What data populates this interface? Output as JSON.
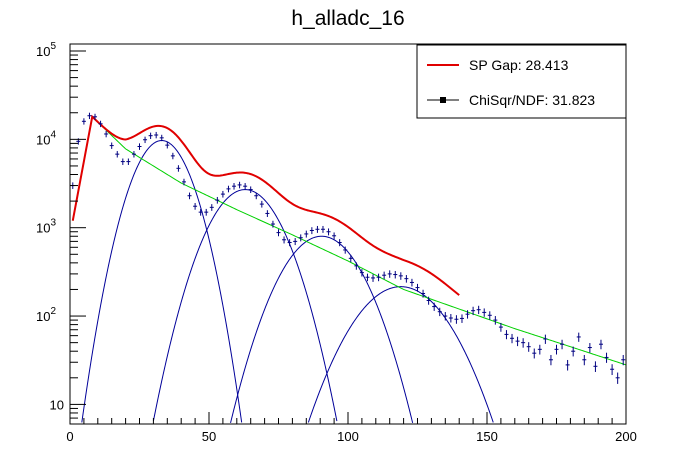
{
  "chart_data": {
    "type": "line",
    "title": "h_alladc_16",
    "xlabel": "",
    "ylabel": "",
    "xlim": [
      0,
      200
    ],
    "ylim": [
      6,
      120000
    ],
    "y_scale": "log",
    "grid": false,
    "legend_position": "top-right",
    "x_ticks": [
      "0",
      "50",
      "100",
      "150",
      "200"
    ],
    "y_ticks": [
      {
        "base": "10",
        "exp": ""
      },
      {
        "base": "10",
        "exp": "2"
      },
      {
        "base": "10",
        "exp": "3"
      },
      {
        "base": "10",
        "exp": "4"
      },
      {
        "base": "10",
        "exp": "5"
      }
    ],
    "legend": [
      {
        "label": "SP Gap: 28.413",
        "color": "#e00000",
        "marker": "line"
      },
      {
        "label": "ChiSqr/NDF: 31.823",
        "color": "#000000",
        "marker": "point"
      }
    ],
    "colors": {
      "data": "#000080",
      "fit_total": "#e00000",
      "background": "#00d000",
      "gaussians": "#000099",
      "frame": "#000000"
    },
    "series": [
      {
        "kind": "data_points",
        "x": [
          1,
          3,
          5,
          7,
          9,
          11,
          13,
          15,
          17,
          19,
          21,
          23,
          25,
          27,
          29,
          31,
          33,
          35,
          37,
          39,
          41,
          43,
          45,
          47,
          49,
          51,
          53,
          55,
          57,
          59,
          61,
          63,
          65,
          67,
          69,
          71,
          73,
          75,
          77,
          79,
          81,
          83,
          85,
          87,
          89,
          91,
          93,
          95,
          97,
          99,
          101,
          103,
          105,
          107,
          109,
          111,
          113,
          115,
          117,
          119,
          121,
          123,
          125,
          127,
          129,
          131,
          133,
          135,
          137,
          139,
          141,
          143,
          145,
          147,
          149,
          151,
          153,
          155,
          157,
          159,
          161,
          163,
          165,
          167,
          169,
          171,
          173,
          175,
          177,
          179,
          181,
          183,
          185,
          187,
          189,
          191,
          193,
          195,
          197,
          199
        ],
        "y": [
          3000,
          9500,
          16000,
          18500,
          18000,
          15000,
          11500,
          8500,
          6800,
          5600,
          5600,
          6800,
          8300,
          9900,
          11000,
          11200,
          10400,
          8600,
          6500,
          4700,
          3300,
          2300,
          1750,
          1500,
          1500,
          1700,
          2050,
          2400,
          2750,
          2950,
          3050,
          2950,
          2700,
          2300,
          1850,
          1450,
          1100,
          880,
          730,
          680,
          700,
          770,
          850,
          930,
          960,
          960,
          900,
          810,
          680,
          560,
          450,
          370,
          310,
          275,
          270,
          275,
          290,
          300,
          295,
          285,
          265,
          240,
          210,
          180,
          150,
          128,
          112,
          100,
          95,
          92,
          94,
          105,
          115,
          118,
          110,
          102,
          90,
          75,
          62,
          56,
          52,
          50,
          45,
          38,
          42,
          55,
          32,
          42,
          48,
          28,
          40,
          58,
          32,
          44,
          27,
          48,
          34,
          25,
          20,
          32
        ],
        "yerr_rel": 0.08
      },
      {
        "kind": "fit_total",
        "name": "SP Gap: 28.413",
        "x_range": [
          1,
          140
        ]
      },
      {
        "kind": "background",
        "x_range": [
          1,
          200
        ],
        "y_at": {
          "x": [
            1,
            8,
            20,
            40,
            60,
            80,
            100,
            120,
            140,
            160,
            180,
            200
          ],
          "y": [
            1200,
            18000,
            7800,
            3200,
            1600,
            830,
            420,
            200,
            120,
            72,
            45,
            28
          ]
        }
      },
      {
        "kind": "gaussians",
        "peaks": [
          {
            "mean": 33.0,
            "amplitude": 9700,
            "sigma": 7.5
          },
          {
            "mean": 63.0,
            "amplitude": 2700,
            "sigma": 9.5
          },
          {
            "mean": 90.5,
            "amplitude": 800,
            "sigma": 10.5
          },
          {
            "mean": 119.0,
            "amplitude": 215,
            "sigma": 12.5
          }
        ]
      }
    ]
  }
}
